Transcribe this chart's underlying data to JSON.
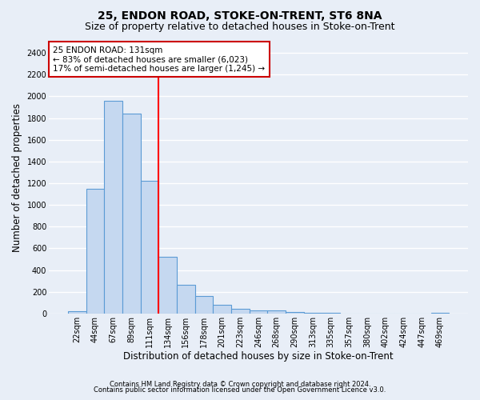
{
  "title1": "25, ENDON ROAD, STOKE-ON-TRENT, ST6 8NA",
  "title2": "Size of property relative to detached houses in Stoke-on-Trent",
  "xlabel": "Distribution of detached houses by size in Stoke-on-Trent",
  "ylabel": "Number of detached properties",
  "categories": [
    "22sqm",
    "44sqm",
    "67sqm",
    "89sqm",
    "111sqm",
    "134sqm",
    "156sqm",
    "178sqm",
    "201sqm",
    "223sqm",
    "246sqm",
    "268sqm",
    "290sqm",
    "313sqm",
    "335sqm",
    "357sqm",
    "380sqm",
    "402sqm",
    "424sqm",
    "447sqm",
    "469sqm"
  ],
  "values": [
    20,
    1150,
    1960,
    1840,
    1220,
    520,
    265,
    160,
    80,
    45,
    30,
    25,
    10,
    5,
    3,
    2,
    1,
    1,
    0,
    0,
    5
  ],
  "bar_color": "#c5d8f0",
  "bar_edge_color": "#5b9bd5",
  "bar_linewidth": 0.8,
  "annotation_line1": "25 ENDON ROAD: 131sqm",
  "annotation_line2": "← 83% of detached houses are smaller (6,023)",
  "annotation_line3": "17% of semi-detached houses are larger (1,245) →",
  "ylim": [
    0,
    2500
  ],
  "yticks": [
    0,
    200,
    400,
    600,
    800,
    1000,
    1200,
    1400,
    1600,
    1800,
    2000,
    2200,
    2400
  ],
  "footnote1": "Contains HM Land Registry data © Crown copyright and database right 2024.",
  "footnote2": "Contains public sector information licensed under the Open Government Licence v3.0.",
  "bg_color": "#e8eef7",
  "plot_bg_color": "#e8eef7",
  "grid_color": "#ffffff",
  "annotation_box_color": "#ffffff",
  "annotation_box_edge": "#cc0000",
  "title_fontsize": 10,
  "subtitle_fontsize": 9,
  "tick_fontsize": 7,
  "xlabel_fontsize": 8.5,
  "ylabel_fontsize": 8.5,
  "annotation_fontsize": 7.5,
  "footnote_fontsize": 6,
  "red_line_index": 4.5
}
